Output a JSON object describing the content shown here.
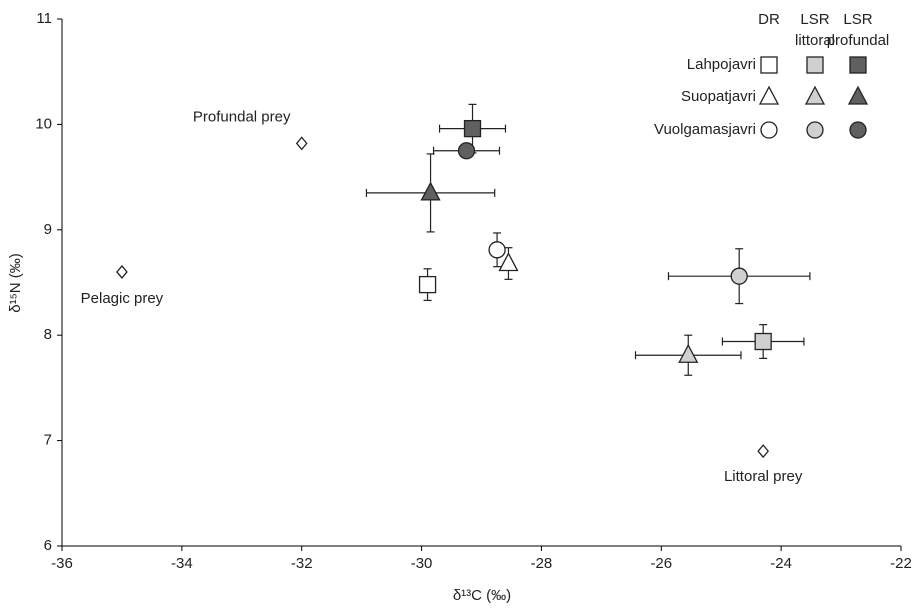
{
  "chart_data": {
    "type": "scatter",
    "xlabel": "δ¹³C (‰)",
    "ylabel": "δ¹⁵N (‰)",
    "xlim": [
      -36,
      -22
    ],
    "xticks": [
      -36,
      -34,
      -32,
      -30,
      -28,
      -26,
      -24,
      -22
    ],
    "ylim": [
      6,
      11
    ],
    "yticks": [
      6,
      7,
      8,
      9,
      10,
      11
    ],
    "legend_columns": [
      [
        "DR"
      ],
      [
        "LSR",
        "littoral"
      ],
      [
        "LSR",
        "profundal"
      ]
    ],
    "column_colors": [
      "#ffffff",
      "#d0d0d0",
      "#606060"
    ],
    "groups": [
      {
        "name": "Lahpojavri",
        "marker": "square",
        "points": [
          {
            "x": -29.9,
            "y": 8.48,
            "xerr": 0,
            "yerr": 0.15
          },
          {
            "x": -24.3,
            "y": 7.94,
            "xerr": 0.68,
            "yerr": 0.16
          },
          {
            "x": -29.15,
            "y": 9.96,
            "xerr": 0.55,
            "yerr": 0.23
          }
        ]
      },
      {
        "name": "Suopatjavri",
        "marker": "triangle",
        "points": [
          {
            "x": -28.55,
            "y": 8.68,
            "xerr": 0,
            "yerr": 0.15
          },
          {
            "x": -25.55,
            "y": 7.81,
            "xerr": 0.88,
            "yerr": 0.19
          },
          {
            "x": -29.85,
            "y": 9.35,
            "xerr": 1.07,
            "yerr": 0.37
          }
        ]
      },
      {
        "name": "Vuolgamasjavri",
        "marker": "circle",
        "points": [
          {
            "x": -28.74,
            "y": 8.81,
            "xerr": 0,
            "yerr": 0.16
          },
          {
            "x": -24.7,
            "y": 8.56,
            "xerr": 1.18,
            "yerr": 0.26
          },
          {
            "x": -29.25,
            "y": 9.75,
            "xerr": 0.55,
            "yerr": 0
          }
        ]
      }
    ],
    "prey": [
      {
        "label": "Profundal prey",
        "x": -32,
        "y": 9.82
      },
      {
        "label": "Pelagic prey",
        "x": -35,
        "y": 8.6
      },
      {
        "label": "Littoral prey",
        "x": -24.3,
        "y": 6.9
      }
    ]
  }
}
